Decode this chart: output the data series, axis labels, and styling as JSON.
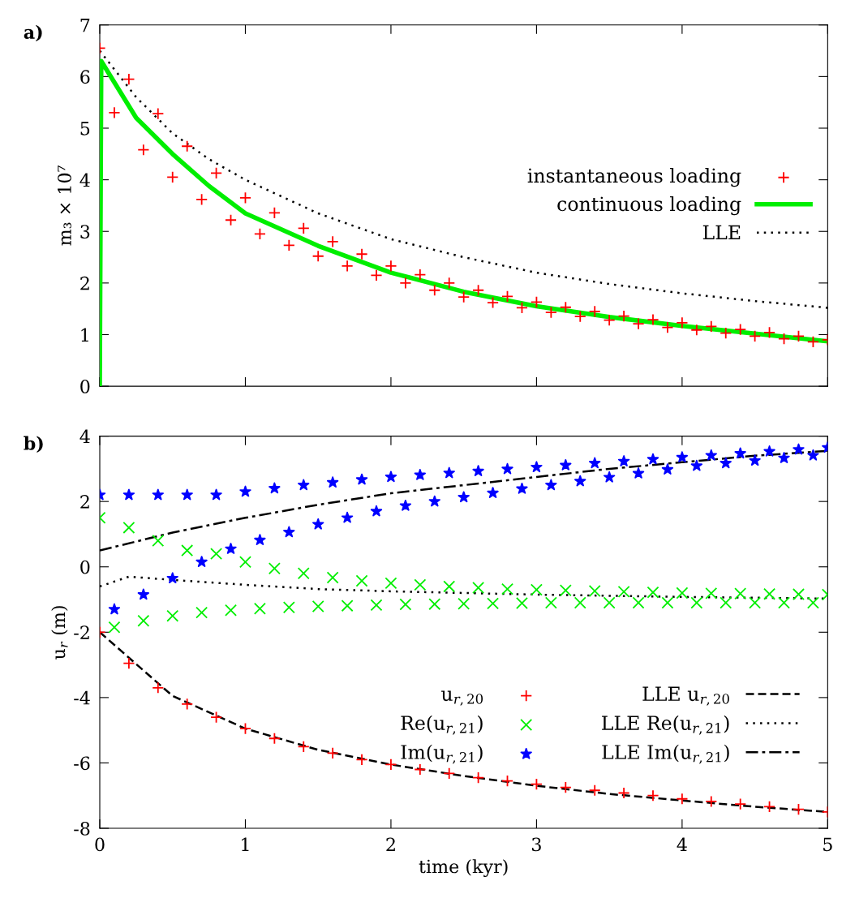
{
  "chart_data": [
    {
      "type": "scatter",
      "xlim": [
        0,
        5
      ],
      "xticks": [
        0,
        1,
        2,
        3,
        4,
        5
      ],
      "ylim": [
        0,
        7
      ],
      "yticks": [
        0,
        1,
        2,
        3,
        4,
        5,
        6,
        7
      ],
      "tick_labels": "y",
      "ylabel": "m₃ × 10⁷",
      "annotations": [
        "a)"
      ],
      "legend": "right",
      "grid": false,
      "series": [
        {
          "name": "instantaneous loading",
          "marker": "cross",
          "color": "#ff0000",
          "x": [
            0,
            0.1,
            0.2,
            0.3,
            0.4,
            0.5,
            0.6,
            0.7,
            0.8,
            0.9,
            1.0,
            1.1,
            1.2,
            1.3,
            1.4,
            1.5,
            1.6,
            1.7,
            1.8,
            1.9,
            2.0,
            2.1,
            2.2,
            2.3,
            2.4,
            2.5,
            2.6,
            2.7,
            2.8,
            2.9,
            3.0,
            3.1,
            3.2,
            3.3,
            3.4,
            3.5,
            3.6,
            3.7,
            3.8,
            3.9,
            4.0,
            4.1,
            4.2,
            4.3,
            4.4,
            4.5,
            4.6,
            4.7,
            4.8,
            4.9,
            5.0
          ],
          "values": [
            6.55,
            5.3,
            5.95,
            4.58,
            5.28,
            4.05,
            4.65,
            3.62,
            4.13,
            3.22,
            3.65,
            2.95,
            3.36,
            2.73,
            3.06,
            2.52,
            2.8,
            2.33,
            2.56,
            2.15,
            2.33,
            2.0,
            2.16,
            1.86,
            2.0,
            1.73,
            1.86,
            1.62,
            1.74,
            1.52,
            1.63,
            1.43,
            1.53,
            1.35,
            1.45,
            1.28,
            1.36,
            1.21,
            1.29,
            1.14,
            1.23,
            1.09,
            1.16,
            1.03,
            1.1,
            0.97,
            1.04,
            0.92,
            0.97,
            0.86,
            0.9
          ]
        },
        {
          "name": "continuous loading",
          "type": "line",
          "line_style": "solid",
          "color": "#00ee00",
          "x": [
            0,
            0.01,
            0.25,
            0.5,
            0.75,
            1,
            1.5,
            2,
            2.5,
            3,
            3.5,
            4,
            4.5,
            5
          ],
          "values": [
            0,
            6.3,
            5.2,
            4.5,
            3.88,
            3.35,
            2.72,
            2.2,
            1.83,
            1.55,
            1.34,
            1.17,
            1.02,
            0.87
          ]
        },
        {
          "name": "LLE",
          "type": "line",
          "line_style": "dotted",
          "color": "#000000",
          "x": [
            0,
            0.25,
            0.5,
            0.75,
            1,
            1.5,
            2,
            2.5,
            3,
            3.5,
            4,
            4.5,
            5
          ],
          "values": [
            6.5,
            5.6,
            4.9,
            4.4,
            4.0,
            3.35,
            2.85,
            2.5,
            2.2,
            1.98,
            1.8,
            1.65,
            1.52
          ]
        }
      ]
    },
    {
      "type": "scatter",
      "xlim": [
        0,
        5
      ],
      "xticks": [
        0,
        1,
        2,
        3,
        4,
        5
      ],
      "ylim": [
        -8,
        4
      ],
      "yticks": [
        {
          "value": -8,
          "label": "-8"
        },
        {
          "value": -6,
          "label": "-6"
        },
        {
          "value": -4,
          "label": "-4"
        },
        {
          "value": -2,
          "label": "-2"
        },
        0,
        2,
        4
      ],
      "xlabel": "time (kyr)",
      "ylabel": "u$_{r}$ (m)",
      "annotations": [
        "b)"
      ],
      "legend": "bottom right",
      "grid": false,
      "series": [
        {
          "name": "u$_{r,20}$",
          "marker": "cross",
          "color": "#ff0000",
          "x": [
            0,
            0.2,
            0.4,
            0.6,
            0.8,
            1.0,
            1.2,
            1.4,
            1.6,
            1.8,
            2.0,
            2.2,
            2.4,
            2.6,
            2.8,
            3.0,
            3.2,
            3.4,
            3.6,
            3.8,
            4.0,
            4.2,
            4.4,
            4.6,
            4.8,
            5.0
          ],
          "values": [
            -2.0,
            -2.95,
            -3.7,
            -4.2,
            -4.6,
            -4.95,
            -5.25,
            -5.5,
            -5.7,
            -5.9,
            -6.05,
            -6.2,
            -6.32,
            -6.45,
            -6.55,
            -6.65,
            -6.75,
            -6.84,
            -6.92,
            -7.0,
            -7.1,
            -7.18,
            -7.26,
            -7.34,
            -7.42,
            -7.5
          ]
        },
        {
          "name": "Re(u$_{r,21}$)",
          "marker": "x",
          "color": "#00ee00",
          "x": [
            0,
            0.1,
            0.2,
            0.3,
            0.4,
            0.5,
            0.6,
            0.7,
            0.8,
            0.9,
            1.0,
            1.1,
            1.2,
            1.3,
            1.4,
            1.5,
            1.6,
            1.7,
            1.8,
            1.9,
            2.0,
            2.1,
            2.2,
            2.3,
            2.4,
            2.5,
            2.6,
            2.7,
            2.8,
            2.9,
            3.0,
            3.1,
            3.2,
            3.3,
            3.4,
            3.5,
            3.6,
            3.7,
            3.8,
            3.9,
            4.0,
            4.1,
            4.2,
            4.3,
            4.4,
            4.5,
            4.6,
            4.7,
            4.8,
            4.9,
            5.0
          ],
          "values": [
            1.5,
            -1.85,
            1.2,
            -1.65,
            0.8,
            -1.5,
            0.5,
            -1.4,
            0.4,
            -1.33,
            0.15,
            -1.28,
            -0.05,
            -1.24,
            -0.2,
            -1.21,
            -0.33,
            -1.19,
            -0.43,
            -1.17,
            -0.5,
            -1.15,
            -0.55,
            -1.14,
            -0.6,
            -1.13,
            -0.64,
            -1.12,
            -0.68,
            -1.11,
            -0.7,
            -1.1,
            -0.72,
            -1.1,
            -0.74,
            -1.1,
            -0.76,
            -1.1,
            -0.78,
            -1.1,
            -0.8,
            -1.1,
            -0.81,
            -1.1,
            -0.82,
            -1.1,
            -0.83,
            -1.1,
            -0.84,
            -1.1,
            -0.85
          ]
        },
        {
          "name": "Im(u$_{r,21}$)",
          "marker": "star",
          "color": "#0000ff",
          "x": [
            0,
            0.1,
            0.2,
            0.3,
            0.4,
            0.5,
            0.6,
            0.7,
            0.8,
            0.9,
            1.0,
            1.1,
            1.2,
            1.3,
            1.4,
            1.5,
            1.6,
            1.7,
            1.8,
            1.9,
            2.0,
            2.1,
            2.2,
            2.3,
            2.4,
            2.5,
            2.6,
            2.7,
            2.8,
            2.9,
            3.0,
            3.1,
            3.2,
            3.3,
            3.4,
            3.5,
            3.6,
            3.7,
            3.8,
            3.9,
            4.0,
            4.1,
            4.2,
            4.3,
            4.4,
            4.5,
            4.6,
            4.7,
            4.8,
            4.9,
            5.0
          ],
          "values": [
            2.2,
            -1.3,
            2.2,
            -0.85,
            2.2,
            -0.35,
            2.2,
            0.15,
            2.2,
            0.55,
            2.3,
            0.82,
            2.4,
            1.06,
            2.5,
            1.3,
            2.58,
            1.5,
            2.67,
            1.7,
            2.75,
            1.87,
            2.81,
            2.0,
            2.87,
            2.13,
            2.93,
            2.26,
            2.99,
            2.39,
            3.05,
            2.5,
            3.11,
            2.62,
            3.17,
            2.74,
            3.23,
            2.86,
            3.29,
            2.98,
            3.35,
            3.09,
            3.41,
            3.17,
            3.47,
            3.25,
            3.53,
            3.33,
            3.59,
            3.41,
            3.65
          ]
        },
        {
          "name": "LLE u$_{r,20}$",
          "type": "line",
          "line_style": "dashed",
          "color": "#000000",
          "x": [
            0,
            0.5,
            1,
            1.5,
            2,
            2.5,
            3,
            3.5,
            4,
            4.5,
            5
          ],
          "values": [
            -2.0,
            -3.95,
            -4.95,
            -5.6,
            -6.05,
            -6.4,
            -6.7,
            -6.95,
            -7.15,
            -7.34,
            -7.5
          ]
        },
        {
          "name": "LLE Re(u$_{r,21}$)",
          "type": "line",
          "line_style": "dotted",
          "color": "#000000",
          "x": [
            0,
            0.2,
            0.5,
            1,
            1.5,
            2,
            3,
            4,
            5
          ],
          "values": [
            -0.6,
            -0.3,
            -0.4,
            -0.55,
            -0.68,
            -0.75,
            -0.85,
            -0.92,
            -0.97
          ]
        },
        {
          "name": "LLE Im(u$_{r,21}$)",
          "type": "line",
          "line_style": "dashdot",
          "color": "#000000",
          "x": [
            0,
            0.5,
            1,
            1.5,
            2,
            2.5,
            3,
            3.5,
            4,
            4.5,
            5
          ],
          "values": [
            0.5,
            1.05,
            1.5,
            1.9,
            2.25,
            2.5,
            2.75,
            3.0,
            3.2,
            3.4,
            3.55
          ]
        }
      ]
    }
  ]
}
